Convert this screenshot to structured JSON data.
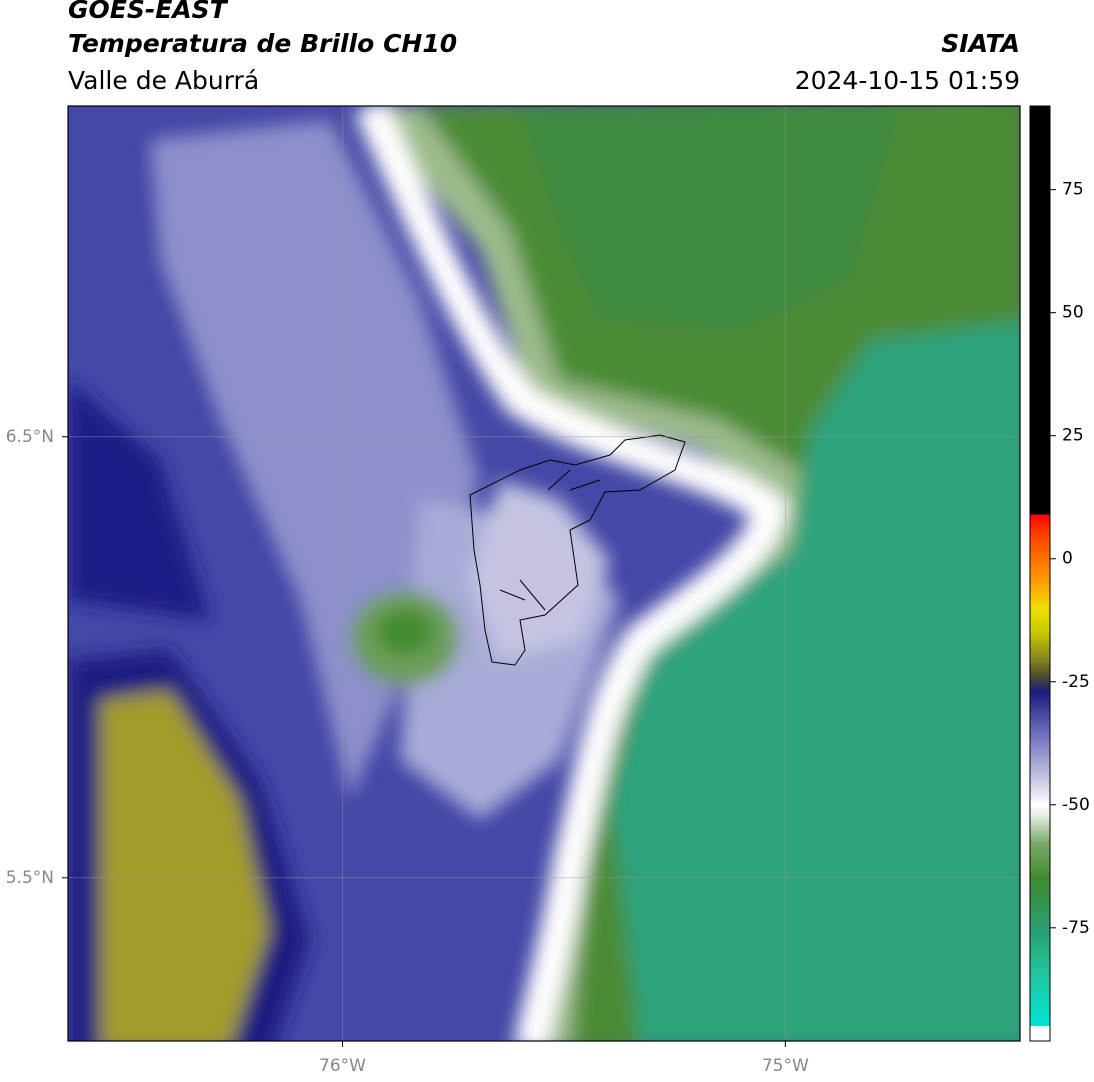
{
  "chart_data": {
    "type": "map",
    "title": "GOES-EAST",
    "subtitle": "Temperatura de Brillo CH10",
    "region": "Valle de Aburrá",
    "source": "SIATA",
    "datetime": "2024-10-15 01:59",
    "xlim": [
      -76.62,
      -74.47
    ],
    "xticks": [
      {
        "value": -76,
        "label": "76°W"
      },
      {
        "value": -75,
        "label": "75°W"
      }
    ],
    "ylim": [
      5.13,
      7.25
    ],
    "yticks": [
      {
        "value": 5.5,
        "label": "5.5°N"
      },
      {
        "value": 6.5,
        "label": "6.5°N"
      }
    ],
    "grid": true,
    "colorbar": {
      "lim": [
        -98,
        92
      ],
      "ticks": [
        -75,
        -50,
        -25,
        0,
        25,
        50,
        75
      ],
      "colormap": [
        {
          "value": -98,
          "color": "#ffffff"
        },
        {
          "value": -95,
          "color": "#ffffff"
        },
        {
          "value": -95,
          "color": "#00e5d8"
        },
        {
          "value": -85,
          "color": "#20c8a0"
        },
        {
          "value": -75,
          "color": "#2a9e70"
        },
        {
          "value": -65,
          "color": "#3f8a2e"
        },
        {
          "value": -58,
          "color": "#7aa868"
        },
        {
          "value": -52,
          "color": "#e8eee6"
        },
        {
          "value": -50,
          "color": "#ffffff"
        },
        {
          "value": -45,
          "color": "#c8c8e4"
        },
        {
          "value": -35,
          "color": "#6a6ab8"
        },
        {
          "value": -27,
          "color": "#1a1a80"
        },
        {
          "value": -24,
          "color": "#4a4a30"
        },
        {
          "value": -20,
          "color": "#8a8a20"
        },
        {
          "value": -15,
          "color": "#c8c800"
        },
        {
          "value": -10,
          "color": "#f0e000"
        },
        {
          "value": -5,
          "color": "#ffa000"
        },
        {
          "value": 5,
          "color": "#ff4000"
        },
        {
          "value": 9,
          "color": "#ff0000"
        },
        {
          "value": 9,
          "color": "#000000"
        },
        {
          "value": 92,
          "color": "#000000"
        }
      ]
    }
  }
}
